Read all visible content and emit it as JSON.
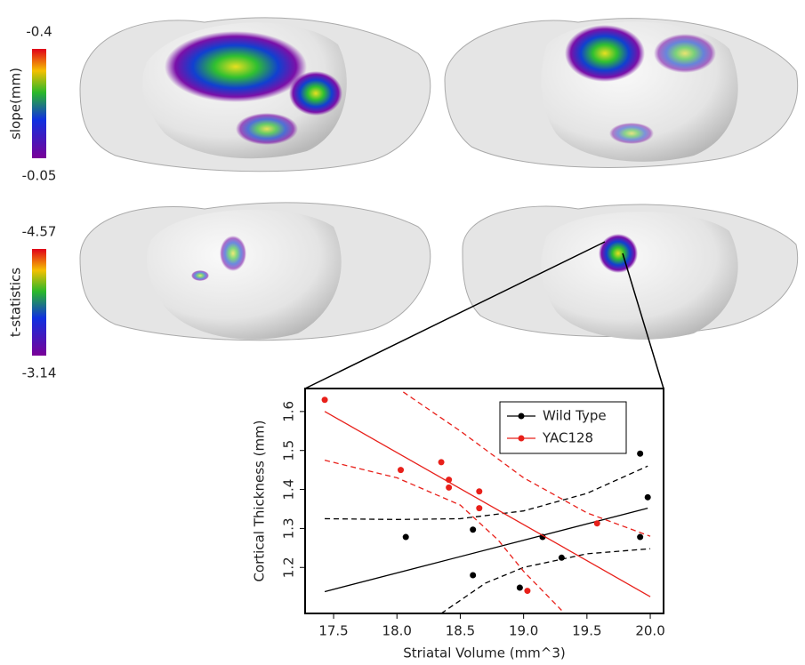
{
  "colorbars": [
    {
      "label": "slope(mm)",
      "top": -0.4,
      "bottom": -0.05
    },
    {
      "label": "t-statistics",
      "top": -4.57,
      "bottom": -3.14
    }
  ],
  "chart_data": {
    "type": "scatter",
    "x_label": "Striatal Volume (mm^3)",
    "y_label": "Cortical Thickness (mm)",
    "xlim": [
      17.275,
      20.105
    ],
    "ylim": [
      1.082,
      1.659
    ],
    "xticks": [
      17.5,
      {
        "value": 18,
        "label": "18.0"
      },
      18.5,
      {
        "value": 19,
        "label": "19.0"
      },
      19.5,
      {
        "value": 20,
        "label": "20.0"
      }
    ],
    "yticks": [
      1.2,
      1.3,
      1.4,
      1.5,
      1.6
    ],
    "legend": "upper right",
    "series": [
      {
        "name": "Wild Type",
        "color": "#000000",
        "x": [
          18.07,
          18.6,
          18.6,
          18.97,
          19.15,
          19.3,
          19.92,
          19.92,
          19.98
        ],
        "values": [
          1.278,
          1.297,
          1.18,
          1.148,
          1.278,
          1.225,
          1.492,
          1.278,
          1.38
        ],
        "fit": {
          "x": [
            17.43,
            19.98
          ],
          "values": [
            1.138,
            1.352
          ]
        },
        "ci_upper": {
          "x": [
            17.43,
            18.0,
            18.5,
            19.0,
            19.5,
            19.98
          ],
          "values": [
            1.325,
            1.323,
            1.325,
            1.345,
            1.39,
            1.46
          ]
        },
        "ci_lower": {
          "x": [
            18.35,
            18.7,
            19.0,
            19.5,
            20.0
          ],
          "values": [
            1.082,
            1.16,
            1.2,
            1.235,
            1.248
          ]
        }
      },
      {
        "name": "YAC128",
        "color": "#e8201a",
        "x": [
          17.43,
          18.03,
          18.35,
          18.41,
          18.41,
          18.65,
          18.65,
          19.58,
          19.03
        ],
        "values": [
          1.63,
          1.45,
          1.47,
          1.425,
          1.405,
          1.395,
          1.352,
          1.313,
          1.14
        ],
        "fit": {
          "x": [
            17.43,
            20.0
          ],
          "values": [
            1.6,
            1.125
          ]
        },
        "ci_upper": {
          "x": [
            18.05,
            18.5,
            19.0,
            19.5,
            20.0
          ],
          "values": [
            1.65,
            1.55,
            1.43,
            1.34,
            1.28
          ]
        },
        "ci_lower": {
          "x": [
            17.43,
            18.0,
            18.5,
            18.8,
            19.0,
            19.3
          ],
          "values": [
            1.475,
            1.43,
            1.36,
            1.27,
            1.19,
            1.09
          ]
        }
      }
    ]
  }
}
